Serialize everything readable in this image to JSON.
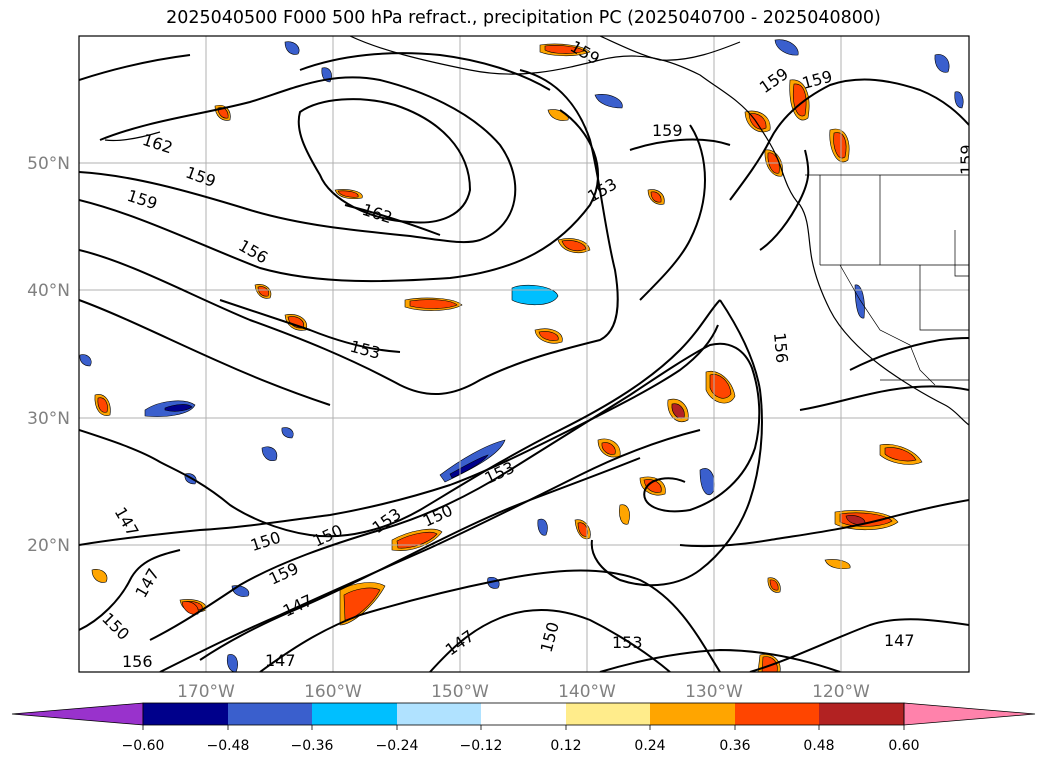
{
  "title": "2025040500 F000 500 hPa refract., precipitation PC (2025040700 - 2025040800)",
  "map": {
    "lat_labels": [
      "50°N",
      "40°N",
      "30°N",
      "20°N"
    ],
    "lon_labels": [
      "170°W",
      "160°W",
      "150°W",
      "140°W",
      "130°W",
      "120°W"
    ],
    "contour_labels": [
      "162",
      "159",
      "159",
      "156",
      "162",
      "153",
      "153",
      "159",
      "159",
      "159",
      "159",
      "156",
      "153",
      "150",
      "150",
      "150",
      "153",
      "159",
      "147",
      "147",
      "147",
      "147",
      "150",
      "153",
      "150",
      "156",
      "147",
      "147",
      "159"
    ]
  },
  "colorbar": {
    "ticks": [
      "−0.60",
      "−0.48",
      "−0.36",
      "−0.24",
      "−0.12",
      "0.12",
      "0.24",
      "0.36",
      "0.48",
      "0.60"
    ],
    "colors": [
      "#9932cc",
      "#00008b",
      "#3a5fcd",
      "#00bfff",
      "#b0e2ff",
      "#ffffff",
      "#ffec8b",
      "#ffa500",
      "#ff4500",
      "#b22222",
      "#ff82ab"
    ]
  }
}
